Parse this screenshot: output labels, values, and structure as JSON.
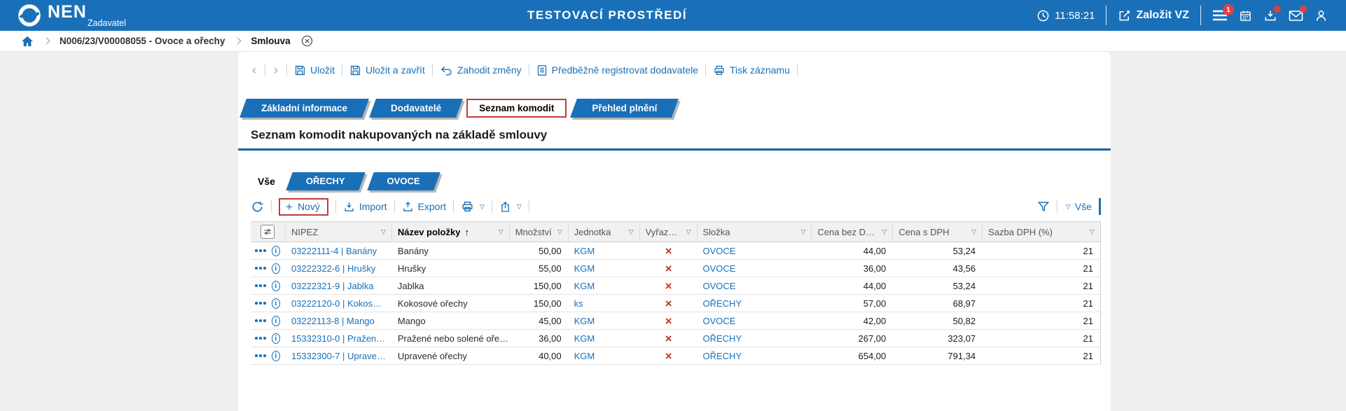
{
  "colors": {
    "accent": "#1a70b8",
    "accent_dark": "#15619f",
    "page_bg": "#efefef",
    "red": "#c0392b",
    "badge_red": "#e04040"
  },
  "header": {
    "brand": "NEN",
    "brand_role": "Zadavatel",
    "environment": "TESTOVACÍ PROSTŘEDÍ",
    "clock": "11:58:21",
    "new_procurement": "Založit VZ",
    "menu_badge": "1"
  },
  "breadcrumb": {
    "items": [
      {
        "label": "N006/23/V00008055 - Ovoce a ořechy"
      },
      {
        "label": "Smlouva"
      }
    ]
  },
  "record_toolbar": {
    "save": "Uložit",
    "save_and_close": "Uložit a zavřít",
    "discard_changes": "Zahodit změny",
    "preregister_supplier": "Předběžně registrovat dodavatele",
    "print_record": "Tisk záznamu"
  },
  "main_tabs": [
    {
      "label": "Základní informace",
      "active": false
    },
    {
      "label": "Dodavatelé",
      "active": false
    },
    {
      "label": "Seznam komodit",
      "active": true
    },
    {
      "label": "Přehled plnění",
      "active": false
    }
  ],
  "section_title": "Seznam komodit nakupovaných na základě smlouvy",
  "category_tabs": [
    {
      "label": "Vše",
      "active": true
    },
    {
      "label": "OŘECHY",
      "active": false
    },
    {
      "label": "OVOCE",
      "active": false
    }
  ],
  "grid_toolbar": {
    "new": "Nový",
    "import": "Import",
    "export": "Export",
    "view_filter": "Vše"
  },
  "table": {
    "columns": [
      {
        "label": "",
        "icon": "column-settings"
      },
      {
        "label": "NIPEZ"
      },
      {
        "label": "Název položky",
        "sorted": "asc"
      },
      {
        "label": "Množství"
      },
      {
        "label": "Jednotka"
      },
      {
        "label": "Vyřazeno"
      },
      {
        "label": "Složka"
      },
      {
        "label": "Cena bez DPH"
      },
      {
        "label": "Cena s DPH"
      },
      {
        "label": "Sazba DPH (%)"
      }
    ],
    "rows": [
      {
        "nipez": "03222111-4 | Banány",
        "name": "Banány",
        "quantity": "50,00",
        "unit": "KGM",
        "excluded": true,
        "folder": "OVOCE",
        "price_no_vat": "44,00",
        "price_vat": "53,24",
        "vat_rate": "21"
      },
      {
        "nipez": "03222322-6 | Hrušky",
        "name": "Hrušky",
        "quantity": "55,00",
        "unit": "KGM",
        "excluded": true,
        "folder": "OVOCE",
        "price_no_vat": "36,00",
        "price_vat": "43,56",
        "vat_rate": "21"
      },
      {
        "nipez": "03222321-9 | Jablka",
        "name": "Jablka",
        "quantity": "150,00",
        "unit": "KGM",
        "excluded": true,
        "folder": "OVOCE",
        "price_no_vat": "44,00",
        "price_vat": "53,24",
        "vat_rate": "21"
      },
      {
        "nipez": "03222120-0 | Kokoso…",
        "name": "Kokosové ořechy",
        "quantity": "150,00",
        "unit": "ks",
        "excluded": true,
        "folder": "OŘECHY",
        "price_no_vat": "57,00",
        "price_vat": "68,97",
        "vat_rate": "21"
      },
      {
        "nipez": "03222113-8 | Mango",
        "name": "Mango",
        "quantity": "45,00",
        "unit": "KGM",
        "excluded": true,
        "folder": "OVOCE",
        "price_no_vat": "42,00",
        "price_vat": "50,82",
        "vat_rate": "21"
      },
      {
        "nipez": "15332310-0 | Pražen…",
        "name": "Pražené nebo solené oře…",
        "quantity": "36,00",
        "unit": "KGM",
        "excluded": true,
        "folder": "OŘECHY",
        "price_no_vat": "267,00",
        "price_vat": "323,07",
        "vat_rate": "21"
      },
      {
        "nipez": "15332300-7 | Uprave…",
        "name": "Upravené ořechy",
        "quantity": "40,00",
        "unit": "KGM",
        "excluded": true,
        "folder": "OŘECHY",
        "price_no_vat": "654,00",
        "price_vat": "791,34",
        "vat_rate": "21"
      }
    ],
    "excluded_glyph": "×"
  },
  "glyphs": {
    "prev": "‹",
    "next": "›",
    "dropdown": "▽",
    "sort_asc": "↑",
    "plus": "+"
  }
}
